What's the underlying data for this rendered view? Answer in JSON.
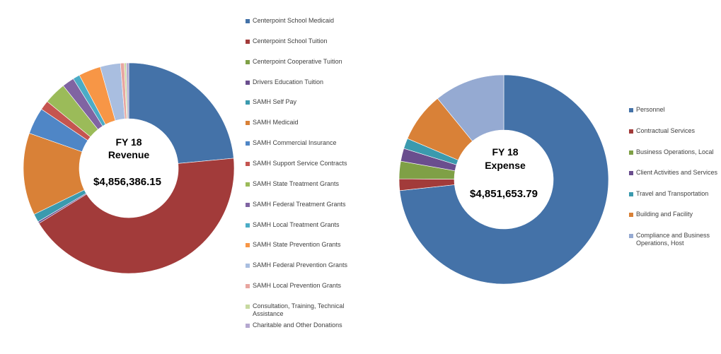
{
  "chart_data": [
    {
      "type": "pie",
      "title": "FY 18 Revenue",
      "title_line1": "FY 18",
      "title_line2": "Revenue",
      "total_label": "$4,856,386.15",
      "legend_position": "right",
      "categories": [
        "Centerpoint School Medicaid",
        "Centerpoint School Tuition",
        "Centerpoint Cooperative Tuition",
        "Drivers Education Tuition",
        "SAMH Self Pay",
        "SAMH Medicaid",
        "SAMH Commercial Insurance",
        "SAMH Support Service Contracts",
        "SAMH State Treatment Grants",
        "SAMH Federal Treatment Grants",
        "SAMH Local Treatment Grants",
        "SAMH State Prevention Grants",
        "SAMH Federal Prevention Grants",
        "SAMH Local Prevention Grants",
        "Consultation, Training, Technical Assistance",
        "Charitable and Other Donations"
      ],
      "values": [
        24.2,
        44.0,
        0.0,
        0.3,
        1.3,
        13.0,
        4.2,
        1.5,
        3.5,
        1.9,
        1.1,
        3.5,
        3.2,
        0.6,
        0.3,
        0.4
      ],
      "colors": [
        "#4472A8",
        "#A23B3A",
        "#7FA046",
        "#6A4E8E",
        "#3B9AAE",
        "#D98137",
        "#4F86C6",
        "#C55550",
        "#9BBB59",
        "#8064A2",
        "#4BACC6",
        "#F79646",
        "#A9BEE0",
        "#E8A6A0",
        "#C7D9A0",
        "#B5A8D0"
      ]
    },
    {
      "type": "pie",
      "title": "FY 18 Expense",
      "title_line1": "FY 18",
      "title_line2": "Expense",
      "total_label": "$4,851,653.79",
      "legend_position": "right",
      "categories": [
        "Personnel",
        "Contractual Services",
        "Business Operations, Local",
        "Client Activities and Services",
        "Travel and Transportation",
        "Building and Facility",
        "Compliance and Business Operations, Host"
      ],
      "values": [
        73.3,
        1.8,
        2.7,
        2.0,
        1.6,
        7.7,
        10.9
      ],
      "colors": [
        "#4472A8",
        "#A23B3A",
        "#7FA046",
        "#6A4E8E",
        "#3B9AAE",
        "#D98137",
        "#95AAD2"
      ]
    }
  ]
}
